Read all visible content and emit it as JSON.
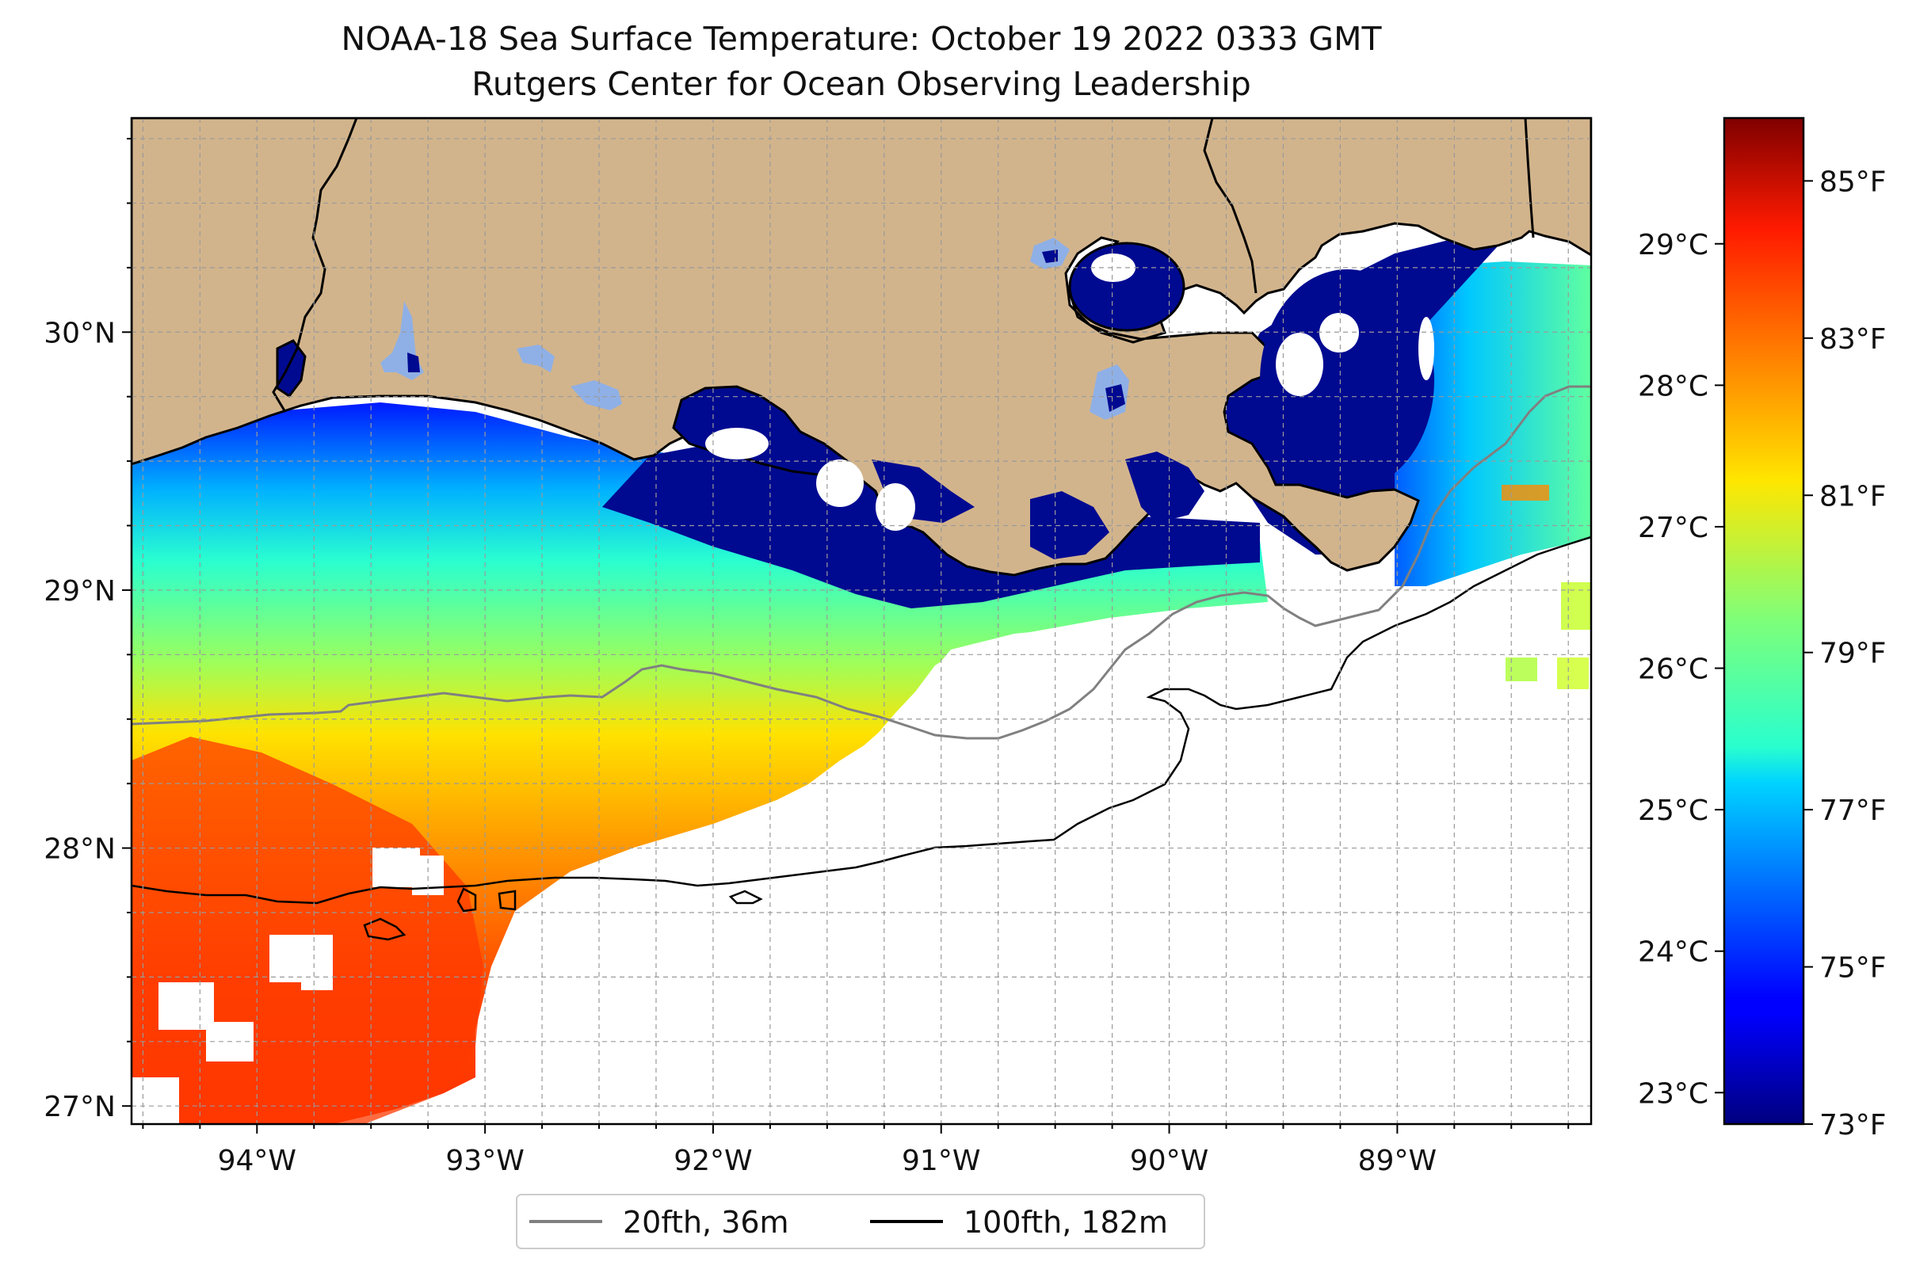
{
  "title": {
    "line1": "NOAA-18 Sea Surface Temperature: October 19 2022 0333 GMT",
    "line2": "Rutgers Center for Ocean Observing Leadership"
  },
  "map": {
    "lon_range": [
      -94.55,
      -88.15
    ],
    "lat_range": [
      26.93,
      30.83
    ],
    "lon_ticks": [
      {
        "value": -94,
        "label": "94°W"
      },
      {
        "value": -93,
        "label": "93°W"
      },
      {
        "value": -92,
        "label": "92°W"
      },
      {
        "value": -91,
        "label": "91°W"
      },
      {
        "value": -90,
        "label": "90°W"
      },
      {
        "value": -89,
        "label": "89°W"
      }
    ],
    "lat_ticks": [
      {
        "value": 30,
        "label": "30°N"
      },
      {
        "value": 29,
        "label": "29°N"
      },
      {
        "value": 28,
        "label": "28°N"
      },
      {
        "value": 27,
        "label": "27°N"
      }
    ],
    "grid": true,
    "land_color": "#d2b48c",
    "no_data_color": "#ffffff"
  },
  "colorbar": {
    "colormap": "jet",
    "celsius_ticks": [
      {
        "value": 23,
        "label": "23°C"
      },
      {
        "value": 24,
        "label": "24°C"
      },
      {
        "value": 25,
        "label": "25°C"
      },
      {
        "value": 26,
        "label": "26°C"
      },
      {
        "value": 27,
        "label": "27°C"
      },
      {
        "value": 28,
        "label": "28°C"
      },
      {
        "value": 29,
        "label": "29°C"
      }
    ],
    "fahrenheit_ticks": [
      {
        "value": 73,
        "label": "73°F"
      },
      {
        "value": 75,
        "label": "75°F"
      },
      {
        "value": 77,
        "label": "77°F"
      },
      {
        "value": 79,
        "label": "79°F"
      },
      {
        "value": 81,
        "label": "81°F"
      },
      {
        "value": 83,
        "label": "83°F"
      },
      {
        "value": 85,
        "label": "85°F"
      }
    ],
    "range_f": [
      73,
      85.8
    ]
  },
  "legend": {
    "items": [
      {
        "label": "20fth, 36m",
        "color": "#808080"
      },
      {
        "label": "100fth, 182m",
        "color": "#000000"
      }
    ],
    "placement": "bottom-center"
  }
}
